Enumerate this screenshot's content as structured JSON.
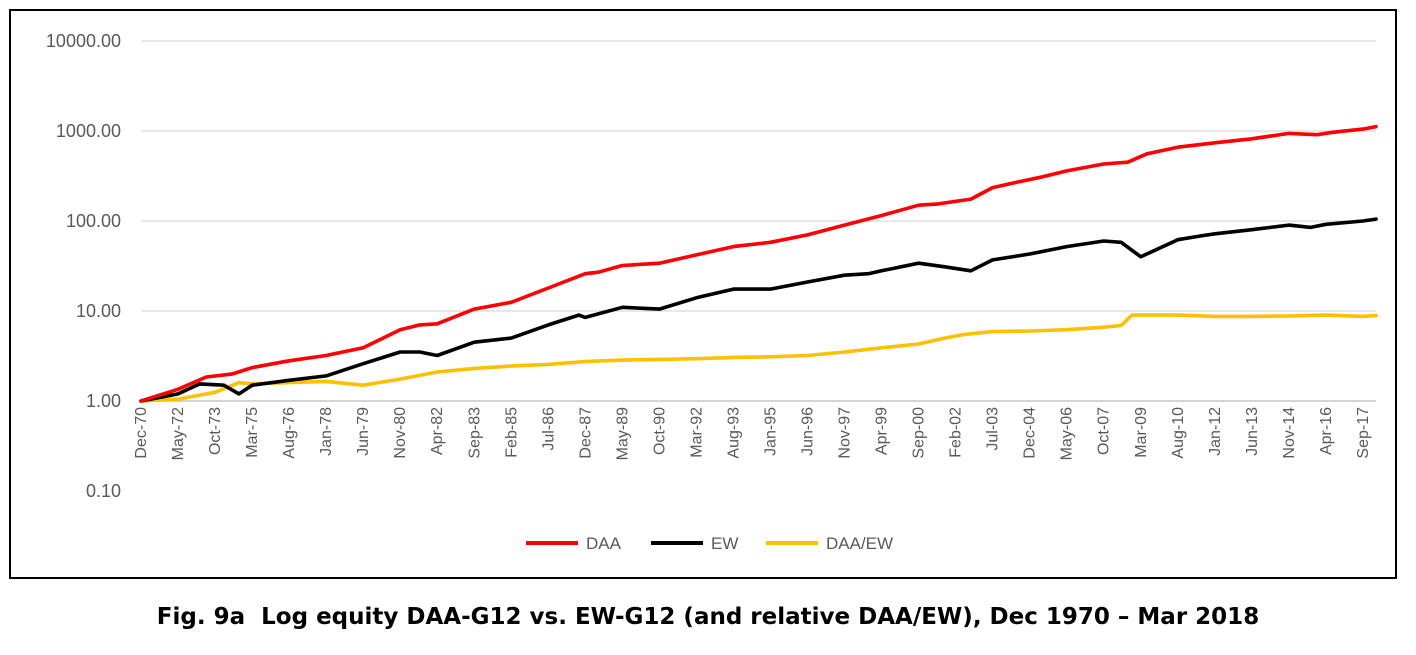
{
  "caption": "Fig. 9a  Log equity DAA-G12 vs. EW-G12 (and relative DAA/EW), Dec 1970 – Mar 2018",
  "chart_data": {
    "type": "line",
    "title": "",
    "xlabel": "",
    "ylabel": "",
    "y_scale": "log",
    "ylim": [
      0.1,
      10000
    ],
    "y_ticks": [
      "10000.00",
      "1000.00",
      "100.00",
      "10.00",
      "1.00",
      "0.10"
    ],
    "y_tick_values": [
      10000,
      1000,
      100,
      10,
      1,
      0.1
    ],
    "grid": "horizontal",
    "legend_position": "bottom",
    "x_range": [
      "1970-12",
      "2018-03"
    ],
    "x_ticks": [
      {
        "label": "Dec-70",
        "date": "1970-12"
      },
      {
        "label": "May-72",
        "date": "1972-05"
      },
      {
        "label": "Oct-73",
        "date": "1973-10"
      },
      {
        "label": "Mar-75",
        "date": "1975-03"
      },
      {
        "label": "Aug-76",
        "date": "1976-08"
      },
      {
        "label": "Jan-78",
        "date": "1978-01"
      },
      {
        "label": "Jun-79",
        "date": "1979-06"
      },
      {
        "label": "Nov-80",
        "date": "1980-11"
      },
      {
        "label": "Apr-82",
        "date": "1982-04"
      },
      {
        "label": "Sep-83",
        "date": "1983-09"
      },
      {
        "label": "Feb-85",
        "date": "1985-02"
      },
      {
        "label": "Jul-86",
        "date": "1986-07"
      },
      {
        "label": "Dec-87",
        "date": "1987-12"
      },
      {
        "label": "May-89",
        "date": "1989-05"
      },
      {
        "label": "Oct-90",
        "date": "1990-10"
      },
      {
        "label": "Mar-92",
        "date": "1992-03"
      },
      {
        "label": "Aug-93",
        "date": "1993-08"
      },
      {
        "label": "Jan-95",
        "date": "1995-01"
      },
      {
        "label": "Jun-96",
        "date": "1996-06"
      },
      {
        "label": "Nov-97",
        "date": "1997-11"
      },
      {
        "label": "Apr-99",
        "date": "1999-04"
      },
      {
        "label": "Sep-00",
        "date": "2000-09"
      },
      {
        "label": "Feb-02",
        "date": "2002-02"
      },
      {
        "label": "Jul-03",
        "date": "2003-07"
      },
      {
        "label": "Dec-04",
        "date": "2004-12"
      },
      {
        "label": "May-06",
        "date": "2006-05"
      },
      {
        "label": "Oct-07",
        "date": "2007-10"
      },
      {
        "label": "Mar-09",
        "date": "2009-03"
      },
      {
        "label": "Aug-10",
        "date": "2010-08"
      },
      {
        "label": "Jan-12",
        "date": "2012-01"
      },
      {
        "label": "Jun-13",
        "date": "2013-06"
      },
      {
        "label": "Nov-14",
        "date": "2014-11"
      },
      {
        "label": "Apr-16",
        "date": "2016-04"
      },
      {
        "label": "Sep-17",
        "date": "2017-09"
      }
    ],
    "series": [
      {
        "name": "DAA",
        "color": "#ff0000",
        "points": [
          [
            "1970-12",
            1.0
          ],
          [
            "1972-05",
            1.35
          ],
          [
            "1973-06",
            1.85
          ],
          [
            "1974-06",
            2.0
          ],
          [
            "1975-03",
            2.35
          ],
          [
            "1976-08",
            2.8
          ],
          [
            "1978-01",
            3.2
          ],
          [
            "1979-06",
            3.9
          ],
          [
            "1980-11",
            6.2
          ],
          [
            "1981-08",
            7.0
          ],
          [
            "1982-04",
            7.2
          ],
          [
            "1983-09",
            10.5
          ],
          [
            "1985-02",
            12.5
          ],
          [
            "1986-07",
            18.0
          ],
          [
            "1987-12",
            26.0
          ],
          [
            "1988-06",
            27.0
          ],
          [
            "1989-05",
            32.0
          ],
          [
            "1990-10",
            34.0
          ],
          [
            "1992-03",
            42.0
          ],
          [
            "1993-08",
            52.0
          ],
          [
            "1995-01",
            58.0
          ],
          [
            "1996-06",
            70.0
          ],
          [
            "1997-11",
            90.0
          ],
          [
            "1999-04",
            115.0
          ],
          [
            "2000-09",
            150.0
          ],
          [
            "2001-06",
            155.0
          ],
          [
            "2002-09",
            175.0
          ],
          [
            "2003-07",
            235.0
          ],
          [
            "2004-06",
            270.0
          ],
          [
            "2005-06",
            310.0
          ],
          [
            "2006-05",
            360.0
          ],
          [
            "2007-10",
            430.0
          ],
          [
            "2008-09",
            450.0
          ],
          [
            "2009-06",
            560.0
          ],
          [
            "2010-08",
            660.0
          ],
          [
            "2012-01",
            740.0
          ],
          [
            "2013-06",
            820.0
          ],
          [
            "2014-11",
            940.0
          ],
          [
            "2015-12",
            910.0
          ],
          [
            "2016-06",
            960.0
          ],
          [
            "2017-09",
            1050.0
          ],
          [
            "2018-03",
            1120.0
          ]
        ]
      },
      {
        "name": "EW",
        "color": "#000000",
        "points": [
          [
            "1970-12",
            1.0
          ],
          [
            "1972-05",
            1.2
          ],
          [
            "1973-03",
            1.55
          ],
          [
            "1974-02",
            1.5
          ],
          [
            "1974-09",
            1.2
          ],
          [
            "1975-03",
            1.5
          ],
          [
            "1976-08",
            1.7
          ],
          [
            "1978-01",
            1.9
          ],
          [
            "1979-06",
            2.6
          ],
          [
            "1980-11",
            3.5
          ],
          [
            "1981-08",
            3.5
          ],
          [
            "1982-04",
            3.2
          ],
          [
            "1983-09",
            4.5
          ],
          [
            "1985-02",
            5.0
          ],
          [
            "1986-07",
            7.0
          ],
          [
            "1987-09",
            9.0
          ],
          [
            "1987-12",
            8.5
          ],
          [
            "1989-05",
            11.0
          ],
          [
            "1990-10",
            10.5
          ],
          [
            "1992-03",
            14.0
          ],
          [
            "1993-08",
            17.5
          ],
          [
            "1995-01",
            17.5
          ],
          [
            "1996-06",
            21.0
          ],
          [
            "1997-11",
            25.0
          ],
          [
            "1998-10",
            26.0
          ],
          [
            "1999-04",
            28.0
          ],
          [
            "2000-09",
            34.0
          ],
          [
            "2001-09",
            31.0
          ],
          [
            "2002-09",
            28.0
          ],
          [
            "2003-07",
            37.0
          ],
          [
            "2004-12",
            43.0
          ],
          [
            "2006-05",
            52.0
          ],
          [
            "2007-10",
            60.0
          ],
          [
            "2008-06",
            58.0
          ],
          [
            "2009-03",
            40.0
          ],
          [
            "2010-08",
            62.0
          ],
          [
            "2011-06",
            68.0
          ],
          [
            "2012-01",
            72.0
          ],
          [
            "2013-06",
            80.0
          ],
          [
            "2014-11",
            90.0
          ],
          [
            "2015-09",
            85.0
          ],
          [
            "2016-04",
            92.0
          ],
          [
            "2017-09",
            100.0
          ],
          [
            "2018-03",
            105.0
          ]
        ]
      },
      {
        "name": "DAA/EW",
        "color": "#ffc000",
        "points": [
          [
            "1970-12",
            1.0
          ],
          [
            "1972-05",
            1.05
          ],
          [
            "1973-10",
            1.25
          ],
          [
            "1974-09",
            1.6
          ],
          [
            "1975-03",
            1.55
          ],
          [
            "1976-08",
            1.6
          ],
          [
            "1978-01",
            1.65
          ],
          [
            "1979-06",
            1.5
          ],
          [
            "1980-11",
            1.75
          ],
          [
            "1982-04",
            2.1
          ],
          [
            "1983-09",
            2.3
          ],
          [
            "1985-02",
            2.45
          ],
          [
            "1986-07",
            2.55
          ],
          [
            "1987-12",
            2.75
          ],
          [
            "1989-05",
            2.85
          ],
          [
            "1990-10",
            2.9
          ],
          [
            "1992-03",
            2.95
          ],
          [
            "1993-08",
            3.05
          ],
          [
            "1995-01",
            3.1
          ],
          [
            "1996-06",
            3.2
          ],
          [
            "1997-11",
            3.5
          ],
          [
            "1999-04",
            3.9
          ],
          [
            "2000-09",
            4.3
          ],
          [
            "2001-09",
            5.0
          ],
          [
            "2002-06",
            5.5
          ],
          [
            "2003-07",
            5.9
          ],
          [
            "2004-12",
            6.0
          ],
          [
            "2006-05",
            6.2
          ],
          [
            "2007-10",
            6.6
          ],
          [
            "2008-06",
            6.9
          ],
          [
            "2008-11",
            9.0
          ],
          [
            "2010-08",
            9.0
          ],
          [
            "2012-01",
            8.7
          ],
          [
            "2013-06",
            8.7
          ],
          [
            "2014-11",
            8.8
          ],
          [
            "2016-04",
            9.0
          ],
          [
            "2017-09",
            8.7
          ],
          [
            "2018-03",
            8.9
          ]
        ]
      }
    ]
  }
}
